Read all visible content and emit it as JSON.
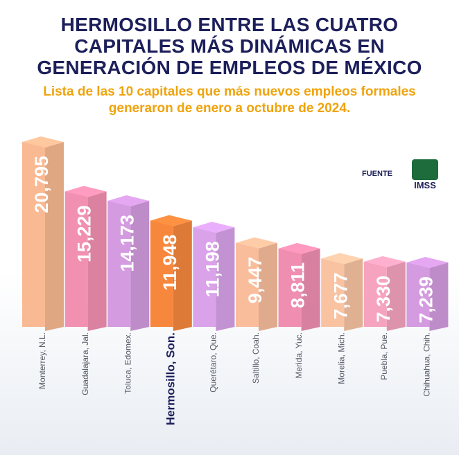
{
  "chart_data": {
    "type": "bar",
    "title": "HERMOSILLO ENTRE LAS CUATRO CAPITALES MÁS DINÁMICAS EN GENERACIÓN DE EMPLEOS DE MÉXICO",
    "subtitle": "Lista de las 10 capitales que más nuevos empleos formales generaron de enero a octubre de 2024.",
    "source": "FUENTE",
    "source_logo": "IMSS",
    "categories": [
      "Monterrey, N.L.",
      "Guadalajara, Jal.",
      "Toluca, Edomex.",
      "Hermosillo, Son.",
      "Querétaro, Que.",
      "Saltillo, Coah.",
      "Merida, Yuc.",
      "Morelia, Mich.",
      "Puebla, Pue.",
      "Chihuahua, Chih."
    ],
    "values": [
      20795,
      15229,
      14173,
      11948,
      11198,
      9447,
      8811,
      7677,
      7330,
      7239
    ],
    "value_labels": [
      "20,795",
      "15,229",
      "14,173",
      "11,948",
      "11,198",
      "9,447",
      "8,811",
      "7,677",
      "7,330",
      "7,239"
    ],
    "colors": [
      "#f9b992",
      "#f290b2",
      "#d49be0",
      "#f7873d",
      "#d9a2e9",
      "#f9bd9c",
      "#ef8eb1",
      "#f9c3a2",
      "#f6a3bf",
      "#d49be0"
    ],
    "highlight": 3
  }
}
